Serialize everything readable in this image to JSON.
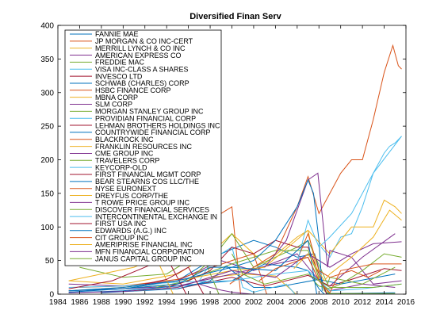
{
  "chart_data": {
    "type": "line",
    "title": "Diversified Finan Serv",
    "xlabel": "",
    "ylabel": "",
    "xlim": [
      1984,
      2016
    ],
    "ylim": [
      0,
      400
    ],
    "x_ticks": [
      1984,
      1986,
      1988,
      1990,
      1992,
      1994,
      1996,
      1998,
      2000,
      2002,
      2004,
      2006,
      2008,
      2010,
      2012,
      2014,
      2016
    ],
    "y_ticks": [
      0,
      50,
      100,
      150,
      200,
      250,
      300,
      350,
      400
    ],
    "grid": false,
    "legend_position": "top-left",
    "series": [
      {
        "name": "FANNIE MAE",
        "color": "#0072bd",
        "x": [
          1985,
          1990,
          1995,
          1999,
          2002,
          2004,
          2006,
          2007.6,
          2008.3,
          2008.7,
          2010,
          2015
        ],
        "y": [
          3,
          8,
          20,
          60,
          80,
          70,
          55,
          60,
          20,
          1,
          1,
          2
        ]
      },
      {
        "name": "JP MORGAN & CO INC-CERT",
        "color": "#d95319",
        "x": [
          1985,
          1990,
          1995,
          1998,
          2000,
          2000.8
        ],
        "y": [
          50,
          60,
          75,
          110,
          130,
          0
        ]
      },
      {
        "name": "MERRILL LYNCH & CO INC",
        "color": "#edb120",
        "x": [
          1985,
          1990,
          1995,
          1998,
          2000,
          2003,
          2006,
          2007,
          2008,
          2009
        ],
        "y": [
          20,
          15,
          30,
          60,
          90,
          45,
          85,
          95,
          20,
          0
        ]
      },
      {
        "name": "AMERICAN EXPRESS CO",
        "color": "#7e2f8e",
        "x": [
          1985,
          1990,
          1995,
          1999,
          2002,
          2006,
          2008,
          2009,
          2012,
          2015
        ],
        "y": [
          15,
          12,
          20,
          50,
          35,
          60,
          20,
          12,
          55,
          90
        ]
      },
      {
        "name": "FREDDIE MAC",
        "color": "#77ac30",
        "x": [
          1990,
          1995,
          2000,
          2004,
          2007,
          2008.5,
          2009,
          2015
        ],
        "y": [
          8,
          15,
          45,
          65,
          65,
          5,
          1,
          1
        ]
      },
      {
        "name": "VISA INC-CLASS A SHARES",
        "color": "#4dbeee",
        "x": [
          2008.2,
          2009,
          2010,
          2011,
          2012,
          2013,
          2014,
          2014.5,
          2015,
          2015.6
        ],
        "y": [
          70,
          55,
          85,
          90,
          130,
          180,
          210,
          220,
          225,
          235
        ]
      },
      {
        "name": "INVESCO LTD",
        "color": "#a2142f",
        "x": [
          1995,
          2000,
          2003,
          2007,
          2009,
          2011,
          2014,
          2015.6
        ],
        "y": [
          8,
          25,
          12,
          28,
          12,
          22,
          38,
          35
        ]
      },
      {
        "name": "SCHWAB (CHARLES) CORP",
        "color": "#0072bd",
        "x": [
          1988,
          1995,
          1998,
          1999.5,
          2000,
          2002,
          2004,
          2008,
          2010,
          2015
        ],
        "y": [
          2,
          8,
          20,
          42,
          35,
          10,
          10,
          22,
          15,
          30
        ]
      },
      {
        "name": "HSBC FINANCE CORP",
        "color": "#d95319",
        "x": [
          1986,
          1990,
          1995,
          2000,
          2002,
          2003.2
        ],
        "y": [
          10,
          12,
          22,
          50,
          60,
          0
        ]
      },
      {
        "name": "MBNA CORP",
        "color": "#edb120",
        "x": [
          1991,
          1995,
          1998,
          2001,
          2004,
          2005.9
        ],
        "y": [
          5,
          10,
          25,
          30,
          27,
          0
        ]
      },
      {
        "name": "SLM CORP",
        "color": "#7e2f8e",
        "x": [
          1985,
          1990,
          1995,
          2000,
          2004,
          2007,
          2008,
          2009,
          2012,
          2015
        ],
        "y": [
          5,
          8,
          12,
          30,
          45,
          55,
          20,
          5,
          15,
          10
        ]
      },
      {
        "name": "MORGAN STANLEY GROUP INC",
        "color": "#77ac30",
        "x": [
          1993,
          1996,
          1998,
          2000,
          2002,
          2006,
          2007,
          2008.8,
          2009,
          2012,
          2015
        ],
        "y": [
          10,
          20,
          50,
          90,
          40,
          70,
          80,
          15,
          25,
          15,
          40
        ]
      },
      {
        "name": "PROVIDIAN FINANCIAL CORP",
        "color": "#4dbeee",
        "x": [
          1997,
          1998,
          1999,
          2000,
          2001,
          2002,
          2005,
          2005.8
        ],
        "y": [
          20,
          45,
          60,
          70,
          10,
          3,
          15,
          0
        ]
      },
      {
        "name": "LEHMAN BROTHERS HOLDINGS INC",
        "color": "#a2142f",
        "x": [
          1994,
          1996,
          1998,
          2000,
          2002,
          2004,
          2006,
          2007,
          2008,
          2008.7
        ],
        "y": [
          10,
          20,
          35,
          70,
          60,
          80,
          70,
          70,
          30,
          0
        ]
      },
      {
        "name": "COUNTRYWIDE FINANCIAL CORP",
        "color": "#0072bd",
        "x": [
          1985,
          1990,
          1995,
          2000,
          2003,
          2006,
          2007,
          2008,
          2008.5
        ],
        "y": [
          2,
          5,
          12,
          20,
          45,
          40,
          35,
          8,
          0
        ]
      },
      {
        "name": "BLACKROCK INC",
        "color": "#d95319",
        "x": [
          1999.8,
          2002,
          2004,
          2006,
          2007,
          2008,
          2009,
          2010,
          2011,
          2012,
          2013,
          2014,
          2014.8,
          2015.3,
          2015.6
        ],
        "y": [
          15,
          40,
          60,
          130,
          175,
          120,
          150,
          180,
          200,
          200,
          260,
          330,
          370,
          340,
          335
        ]
      },
      {
        "name": "FRANKLIN RESOURCES INC",
        "color": "#edb120",
        "x": [
          1985,
          1990,
          1995,
          2000,
          2003,
          2007,
          2009,
          2011,
          2013,
          2014,
          2015,
          2015.6
        ],
        "y": [
          5,
          10,
          20,
          35,
          40,
          95,
          60,
          100,
          100,
          140,
          130,
          120
        ]
      },
      {
        "name": "CME GROUP INC",
        "color": "#7e2f8e",
        "x": [
          2003,
          2005,
          2007,
          2007.9,
          2008.8,
          2009,
          2011,
          2013,
          2015.6
        ],
        "y": [
          40,
          80,
          170,
          180,
          40,
          65,
          55,
          15,
          20
        ]
      },
      {
        "name": "TRAVELERS CORP",
        "color": "#77ac30",
        "x": [
          1986,
          1990,
          1994,
          1996,
          1997,
          1998.8
        ],
        "y": [
          40,
          25,
          30,
          50,
          70,
          0
        ]
      },
      {
        "name": "KEYCORP-OLD",
        "color": "#4dbeee",
        "x": [
          1985,
          1990,
          1995,
          2000,
          2004,
          2007,
          2009,
          2012,
          2015.6
        ],
        "y": [
          10,
          12,
          18,
          20,
          30,
          35,
          5,
          8,
          15
        ]
      },
      {
        "name": "FIRST FINANCIAL MGMT CORP",
        "color": "#a2142f",
        "x": [
          1985,
          1989,
          1992,
          1994,
          1995.8
        ],
        "y": [
          8,
          20,
          40,
          55,
          0
        ]
      },
      {
        "name": "BEAR STEARNS COS LLC/THE",
        "color": "#0072bd",
        "x": [
          1985,
          1990,
          1995,
          1998,
          2000,
          2002,
          2004,
          2006,
          2007,
          2007.5,
          2008,
          2008.3
        ],
        "y": [
          5,
          8,
          15,
          40,
          40,
          50,
          80,
          130,
          170,
          150,
          80,
          5
        ]
      },
      {
        "name": "NYSE EURONEXT",
        "color": "#d95319",
        "x": [
          2006.1,
          2007,
          2008,
          2009,
          2011,
          2012.5,
          2013.7
        ],
        "y": [
          55,
          90,
          35,
          25,
          35,
          25,
          35
        ]
      },
      {
        "name": "DREYFUS CORP/THE",
        "color": "#edb120",
        "x": [
          1985,
          1988,
          1991,
          1993,
          1994.6
        ],
        "y": [
          20,
          30,
          40,
          55,
          0
        ]
      },
      {
        "name": "T ROWE PRICE GROUP INC",
        "color": "#7e2f8e",
        "x": [
          1985,
          1990,
          1995,
          2000,
          2004,
          2007,
          2009,
          2011,
          2013,
          2015.6
        ],
        "y": [
          2,
          4,
          10,
          35,
          25,
          60,
          40,
          60,
          75,
          78
        ]
      },
      {
        "name": "DISCOVER FINANCIAL SERVICES",
        "color": "#77ac30",
        "x": [
          2007.5,
          2008,
          2009,
          2010,
          2012,
          2014,
          2015.6
        ],
        "y": [
          20,
          12,
          8,
          15,
          35,
          60,
          55
        ]
      },
      {
        "name": "INTERCONTINENTAL EXCHANGE IN",
        "color": "#4dbeee",
        "x": [
          2005.9,
          2007,
          2008,
          2009,
          2011,
          2013,
          2015.6
        ],
        "y": [
          40,
          110,
          70,
          85,
          120,
          180,
          235
        ]
      },
      {
        "name": "FIRST USA INC",
        "color": "#a2142f",
        "x": [
          1992,
          1994,
          1996,
          1997.4
        ],
        "y": [
          15,
          22,
          40,
          0
        ]
      },
      {
        "name": "EDWARDS (A.G.) INC",
        "color": "#0072bd",
        "x": [
          1985,
          1990,
          1995,
          2000,
          2004,
          2007,
          2007.8
        ],
        "y": [
          5,
          10,
          20,
          40,
          35,
          80,
          0
        ]
      },
      {
        "name": "CIT GROUP INC",
        "color": "#d95319",
        "x": [
          2002.5,
          2004,
          2007,
          2008,
          2009,
          2010,
          2013,
          2015.6
        ],
        "y": [
          20,
          38,
          55,
          20,
          2,
          35,
          45,
          45
        ]
      },
      {
        "name": "AMERIPRISE FINANCIAL INC",
        "color": "#edb120",
        "x": [
          2005.7,
          2007,
          2008.5,
          2009,
          2011,
          2013,
          2014.5,
          2015.6
        ],
        "y": [
          38,
          60,
          20,
          30,
          55,
          85,
          125,
          110
        ]
      },
      {
        "name": "MFN FINANCIAL CORPORATION",
        "color": "#7e2f8e",
        "x": [
          1997,
          1998,
          1999,
          2000,
          2001.8
        ],
        "y": [
          15,
          10,
          6,
          3,
          0
        ]
      },
      {
        "name": "JANUS CAPITAL GROUP INC",
        "color": "#77ac30",
        "x": [
          2000,
          2001,
          2003,
          2007,
          2009,
          2013,
          2015.6
        ],
        "y": [
          60,
          30,
          15,
          30,
          10,
          10,
          15
        ]
      }
    ]
  }
}
